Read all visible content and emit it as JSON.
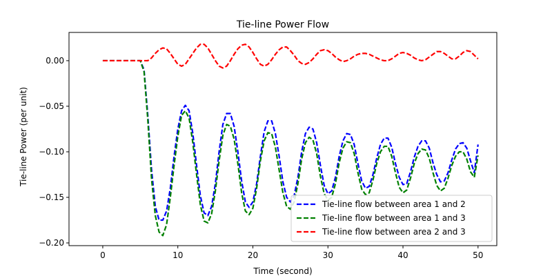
{
  "chart_data": {
    "type": "line",
    "title": "Tie-line Power Flow",
    "xlabel": "Time (second)",
    "ylabel": "Tie-line Power (per unit)",
    "xlim": [
      -4.5,
      52.5
    ],
    "ylim": [
      -0.203,
      0.031
    ],
    "xticks": [
      0,
      10,
      20,
      30,
      40,
      50
    ],
    "yticks": [
      0.0,
      -0.05,
      -0.1,
      -0.15,
      -0.2
    ],
    "ytick_labels": [
      "0.00",
      "−0.05",
      "−0.10",
      "−0.15",
      "−0.20"
    ],
    "grid": false,
    "legend_position": "lower-right",
    "line_style": "dashed",
    "series": [
      {
        "name": "Tie-line flow between area 1 and 2",
        "color": "#0000ff",
        "points": [
          [
            0,
            0
          ],
          [
            1,
            0
          ],
          [
            2,
            0
          ],
          [
            3,
            0
          ],
          [
            4,
            0
          ],
          [
            5,
            0
          ],
          [
            5.5,
            -0.01
          ],
          [
            6,
            -0.06
          ],
          [
            6.5,
            -0.12
          ],
          [
            7,
            -0.16
          ],
          [
            7.5,
            -0.175
          ],
          [
            8,
            -0.175
          ],
          [
            8.5,
            -0.165
          ],
          [
            9,
            -0.14
          ],
          [
            9.5,
            -0.105
          ],
          [
            10,
            -0.075
          ],
          [
            10.5,
            -0.055
          ],
          [
            11,
            -0.049
          ],
          [
            11.5,
            -0.055
          ],
          [
            12,
            -0.08
          ],
          [
            12.5,
            -0.115
          ],
          [
            13,
            -0.148
          ],
          [
            13.5,
            -0.167
          ],
          [
            14,
            -0.17
          ],
          [
            14.5,
            -0.16
          ],
          [
            15,
            -0.135
          ],
          [
            15.5,
            -0.1
          ],
          [
            16,
            -0.07
          ],
          [
            16.5,
            -0.058
          ],
          [
            17,
            -0.058
          ],
          [
            17.5,
            -0.072
          ],
          [
            18,
            -0.1
          ],
          [
            18.5,
            -0.132
          ],
          [
            19,
            -0.155
          ],
          [
            19.5,
            -0.161
          ],
          [
            20,
            -0.155
          ],
          [
            20.5,
            -0.135
          ],
          [
            21,
            -0.105
          ],
          [
            21.5,
            -0.078
          ],
          [
            22,
            -0.066
          ],
          [
            22.5,
            -0.066
          ],
          [
            23,
            -0.08
          ],
          [
            23.5,
            -0.105
          ],
          [
            24,
            -0.133
          ],
          [
            24.5,
            -0.15
          ],
          [
            25,
            -0.155
          ],
          [
            25.5,
            -0.148
          ],
          [
            26,
            -0.128
          ],
          [
            26.5,
            -0.1
          ],
          [
            27,
            -0.08
          ],
          [
            27.5,
            -0.073
          ],
          [
            28,
            -0.075
          ],
          [
            28.5,
            -0.09
          ],
          [
            29,
            -0.115
          ],
          [
            29.5,
            -0.137
          ],
          [
            30,
            -0.146
          ],
          [
            30.5,
            -0.143
          ],
          [
            31,
            -0.128
          ],
          [
            31.5,
            -0.105
          ],
          [
            32,
            -0.088
          ],
          [
            32.5,
            -0.08
          ],
          [
            33,
            -0.081
          ],
          [
            33.5,
            -0.092
          ],
          [
            34,
            -0.113
          ],
          [
            34.5,
            -0.132
          ],
          [
            35,
            -0.14
          ],
          [
            35.5,
            -0.138
          ],
          [
            36,
            -0.125
          ],
          [
            36.5,
            -0.107
          ],
          [
            37,
            -0.092
          ],
          [
            37.5,
            -0.085
          ],
          [
            38,
            -0.085
          ],
          [
            38.5,
            -0.095
          ],
          [
            39,
            -0.113
          ],
          [
            39.5,
            -0.128
          ],
          [
            40,
            -0.136
          ],
          [
            40.5,
            -0.135
          ],
          [
            41,
            -0.122
          ],
          [
            41.5,
            -0.106
          ],
          [
            42,
            -0.094
          ],
          [
            42.5,
            -0.088
          ],
          [
            43,
            -0.088
          ],
          [
            43.5,
            -0.096
          ],
          [
            44,
            -0.112
          ],
          [
            44.5,
            -0.125
          ],
          [
            45,
            -0.133
          ],
          [
            45.5,
            -0.132
          ],
          [
            46,
            -0.123
          ],
          [
            46.5,
            -0.109
          ],
          [
            47,
            -0.097
          ],
          [
            47.5,
            -0.091
          ],
          [
            48,
            -0.09
          ],
          [
            48.5,
            -0.096
          ],
          [
            49,
            -0.11
          ],
          [
            49.5,
            -0.123
          ],
          [
            50,
            -0.092
          ]
        ]
      },
      {
        "name": "Tie-line flow between area 1 and 3",
        "color": "#008000",
        "points": [
          [
            0,
            0
          ],
          [
            1,
            0
          ],
          [
            2,
            0
          ],
          [
            3,
            0
          ],
          [
            4,
            0
          ],
          [
            5,
            0
          ],
          [
            5.5,
            -0.012
          ],
          [
            6,
            -0.065
          ],
          [
            6.5,
            -0.13
          ],
          [
            7,
            -0.17
          ],
          [
            7.5,
            -0.188
          ],
          [
            8,
            -0.192
          ],
          [
            8.5,
            -0.18
          ],
          [
            9,
            -0.15
          ],
          [
            9.5,
            -0.115
          ],
          [
            10,
            -0.083
          ],
          [
            10.5,
            -0.06
          ],
          [
            11,
            -0.055
          ],
          [
            11.5,
            -0.063
          ],
          [
            12,
            -0.09
          ],
          [
            12.5,
            -0.125
          ],
          [
            13,
            -0.158
          ],
          [
            13.5,
            -0.176
          ],
          [
            14,
            -0.178
          ],
          [
            14.5,
            -0.168
          ],
          [
            15,
            -0.143
          ],
          [
            15.5,
            -0.11
          ],
          [
            16,
            -0.082
          ],
          [
            16.5,
            -0.07
          ],
          [
            17,
            -0.072
          ],
          [
            17.5,
            -0.086
          ],
          [
            18,
            -0.113
          ],
          [
            18.5,
            -0.145
          ],
          [
            19,
            -0.165
          ],
          [
            19.5,
            -0.169
          ],
          [
            20,
            -0.162
          ],
          [
            20.5,
            -0.14
          ],
          [
            21,
            -0.11
          ],
          [
            21.5,
            -0.088
          ],
          [
            22,
            -0.079
          ],
          [
            22.5,
            -0.08
          ],
          [
            23,
            -0.095
          ],
          [
            23.5,
            -0.12
          ],
          [
            24,
            -0.145
          ],
          [
            24.5,
            -0.16
          ],
          [
            25,
            -0.163
          ],
          [
            25.5,
            -0.155
          ],
          [
            26,
            -0.135
          ],
          [
            26.5,
            -0.108
          ],
          [
            27,
            -0.09
          ],
          [
            27.5,
            -0.084
          ],
          [
            28,
            -0.087
          ],
          [
            28.5,
            -0.102
          ],
          [
            29,
            -0.127
          ],
          [
            29.5,
            -0.146
          ],
          [
            30,
            -0.153
          ],
          [
            30.5,
            -0.15
          ],
          [
            31,
            -0.135
          ],
          [
            31.5,
            -0.112
          ],
          [
            32,
            -0.096
          ],
          [
            32.5,
            -0.089
          ],
          [
            33,
            -0.09
          ],
          [
            33.5,
            -0.102
          ],
          [
            34,
            -0.123
          ],
          [
            34.5,
            -0.141
          ],
          [
            35,
            -0.147
          ],
          [
            35.5,
            -0.145
          ],
          [
            36,
            -0.131
          ],
          [
            36.5,
            -0.113
          ],
          [
            37,
            -0.1
          ],
          [
            37.5,
            -0.094
          ],
          [
            38,
            -0.094
          ],
          [
            38.5,
            -0.105
          ],
          [
            39,
            -0.123
          ],
          [
            39.5,
            -0.139
          ],
          [
            40,
            -0.145
          ],
          [
            40.5,
            -0.142
          ],
          [
            41,
            -0.129
          ],
          [
            41.5,
            -0.113
          ],
          [
            42,
            -0.102
          ],
          [
            42.5,
            -0.097
          ],
          [
            43,
            -0.098
          ],
          [
            43.5,
            -0.107
          ],
          [
            44,
            -0.123
          ],
          [
            44.5,
            -0.137
          ],
          [
            45,
            -0.143
          ],
          [
            45.5,
            -0.14
          ],
          [
            46,
            -0.129
          ],
          [
            46.5,
            -0.115
          ],
          [
            47,
            -0.105
          ],
          [
            47.5,
            -0.1
          ],
          [
            48,
            -0.1
          ],
          [
            48.5,
            -0.108
          ],
          [
            49,
            -0.122
          ],
          [
            49.5,
            -0.128
          ],
          [
            50,
            -0.104
          ]
        ]
      },
      {
        "name": "Tie-line flow between area 2 and 3",
        "color": "#ff0000",
        "points": [
          [
            0,
            0
          ],
          [
            1,
            0
          ],
          [
            2,
            0
          ],
          [
            3,
            0
          ],
          [
            4,
            0
          ],
          [
            5,
            0
          ],
          [
            6,
            0.0
          ],
          [
            6.5,
            0.003
          ],
          [
            7,
            0.008
          ],
          [
            7.5,
            0.012
          ],
          [
            8,
            0.014
          ],
          [
            8.5,
            0.013
          ],
          [
            9,
            0.008
          ],
          [
            9.5,
            0.002
          ],
          [
            10,
            -0.004
          ],
          [
            10.5,
            -0.006
          ],
          [
            11,
            -0.004
          ],
          [
            11.5,
            0.002
          ],
          [
            12,
            0.008
          ],
          [
            12.5,
            0.014
          ],
          [
            13,
            0.018
          ],
          [
            13.5,
            0.018
          ],
          [
            14,
            0.014
          ],
          [
            14.5,
            0.007
          ],
          [
            15,
            0.0
          ],
          [
            15.5,
            -0.006
          ],
          [
            16,
            -0.008
          ],
          [
            16.5,
            -0.006
          ],
          [
            17,
            0.0
          ],
          [
            17.5,
            0.007
          ],
          [
            18,
            0.013
          ],
          [
            18.5,
            0.017
          ],
          [
            19,
            0.018
          ],
          [
            19.5,
            0.015
          ],
          [
            20,
            0.009
          ],
          [
            20.5,
            0.002
          ],
          [
            21,
            -0.004
          ],
          [
            21.5,
            -0.006
          ],
          [
            22,
            -0.004
          ],
          [
            22.5,
            0.001
          ],
          [
            23,
            0.007
          ],
          [
            23.5,
            0.012
          ],
          [
            24,
            0.015
          ],
          [
            24.5,
            0.015
          ],
          [
            25,
            0.011
          ],
          [
            25.5,
            0.006
          ],
          [
            26,
            0.0
          ],
          [
            26.5,
            -0.003
          ],
          [
            27,
            -0.004
          ],
          [
            27.5,
            -0.002
          ],
          [
            28,
            0.002
          ],
          [
            28.5,
            0.007
          ],
          [
            29,
            0.011
          ],
          [
            29.5,
            0.012
          ],
          [
            30,
            0.011
          ],
          [
            30.5,
            0.008
          ],
          [
            31,
            0.004
          ],
          [
            31.5,
            0.001
          ],
          [
            32,
            -0.001
          ],
          [
            32.5,
            0.0
          ],
          [
            33,
            0.002
          ],
          [
            33.5,
            0.005
          ],
          [
            34,
            0.007
          ],
          [
            34.5,
            0.008
          ],
          [
            35,
            0.008
          ],
          [
            35.5,
            0.007
          ],
          [
            36,
            0.005
          ],
          [
            36.5,
            0.003
          ],
          [
            37,
            0.001
          ],
          [
            37.5,
            0.0
          ],
          [
            38,
            0.0
          ],
          [
            38.5,
            0.002
          ],
          [
            39,
            0.005
          ],
          [
            39.5,
            0.008
          ],
          [
            40,
            0.009
          ],
          [
            40.5,
            0.008
          ],
          [
            41,
            0.006
          ],
          [
            41.5,
            0.003
          ],
          [
            42,
            0.001
          ],
          [
            42.5,
            0.0
          ],
          [
            43,
            0.001
          ],
          [
            43.5,
            0.004
          ],
          [
            44,
            0.007
          ],
          [
            44.5,
            0.01
          ],
          [
            45,
            0.01
          ],
          [
            45.5,
            0.008
          ],
          [
            46,
            0.005
          ],
          [
            46.5,
            0.002
          ],
          [
            47,
            0.002
          ],
          [
            47.5,
            0.005
          ],
          [
            48,
            0.009
          ],
          [
            48.5,
            0.011
          ],
          [
            49,
            0.01
          ],
          [
            49.5,
            0.006
          ],
          [
            50,
            0.002
          ]
        ]
      }
    ]
  }
}
